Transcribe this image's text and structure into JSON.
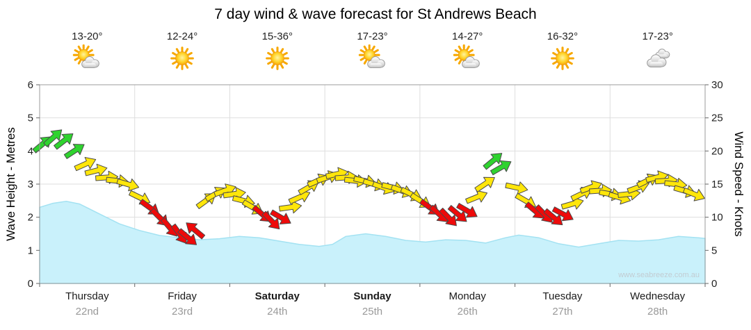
{
  "title": "7 day wind & wave forecast for St Andrews Beach",
  "watermark": "www.seabreeze.com.au",
  "days": [
    {
      "name": "Thursday",
      "date": "22nd",
      "temp": "13-20°",
      "icon": "sun-cloud",
      "bold": false
    },
    {
      "name": "Friday",
      "date": "23rd",
      "temp": "12-24°",
      "icon": "sun",
      "bold": false
    },
    {
      "name": "Saturday",
      "date": "24th",
      "temp": "15-36°",
      "icon": "sun",
      "bold": true
    },
    {
      "name": "Sunday",
      "date": "25th",
      "temp": "17-23°",
      "icon": "sun-cloud",
      "bold": true
    },
    {
      "name": "Monday",
      "date": "26th",
      "temp": "14-27°",
      "icon": "sun-cloud",
      "bold": false
    },
    {
      "name": "Tuesday",
      "date": "27th",
      "temp": "16-32°",
      "icon": "sun",
      "bold": false
    },
    {
      "name": "Wednesday",
      "date": "28th",
      "temp": "17-23°",
      "icon": "cloud",
      "bold": false
    }
  ],
  "chart_data": {
    "type": "area+wind_arrows",
    "title": "7 day wind & wave forecast for St Andrews Beach",
    "x_axis": {
      "categories": [
        "Thursday 22nd",
        "Friday 23rd",
        "Saturday 24th",
        "Sunday 25th",
        "Monday 26th",
        "Tuesday 27th",
        "Wednesday 28th"
      ]
    },
    "left_axis": {
      "label": "Wave Height - Metres",
      "min": 0,
      "max": 6,
      "step": 1
    },
    "right_axis": {
      "label": "Wind Speed - Knots",
      "min": 0,
      "max": 30,
      "step": 5
    },
    "grid": true,
    "legend_position": "none",
    "colors": {
      "wave_fill": "#C9F1FB",
      "wave_edge": "#A3E2F2",
      "green": "#2FD32F",
      "yellow": "#FFE60A",
      "red": "#EE0A0A",
      "grid": "#DEDEDE",
      "border": "#9B9B9B"
    },
    "wave_series": {
      "name": "Wave Height (metres)",
      "columns": [
        "x_fraction",
        "metres"
      ],
      "points": [
        [
          0,
          2.3
        ],
        [
          0.02,
          2.42
        ],
        [
          0.04,
          2.48
        ],
        [
          0.06,
          2.4
        ],
        [
          0.09,
          2.1
        ],
        [
          0.12,
          1.8
        ],
        [
          0.15,
          1.6
        ],
        [
          0.18,
          1.45
        ],
        [
          0.21,
          1.38
        ],
        [
          0.24,
          1.32
        ],
        [
          0.27,
          1.35
        ],
        [
          0.3,
          1.42
        ],
        [
          0.33,
          1.38
        ],
        [
          0.36,
          1.28
        ],
        [
          0.39,
          1.18
        ],
        [
          0.42,
          1.12
        ],
        [
          0.44,
          1.18
        ],
        [
          0.46,
          1.42
        ],
        [
          0.49,
          1.5
        ],
        [
          0.52,
          1.42
        ],
        [
          0.55,
          1.3
        ],
        [
          0.58,
          1.25
        ],
        [
          0.61,
          1.32
        ],
        [
          0.64,
          1.3
        ],
        [
          0.67,
          1.22
        ],
        [
          0.7,
          1.38
        ],
        [
          0.72,
          1.46
        ],
        [
          0.75,
          1.38
        ],
        [
          0.78,
          1.2
        ],
        [
          0.81,
          1.1
        ],
        [
          0.84,
          1.2
        ],
        [
          0.87,
          1.3
        ],
        [
          0.9,
          1.28
        ],
        [
          0.93,
          1.32
        ],
        [
          0.96,
          1.42
        ],
        [
          0.99,
          1.38
        ],
        [
          1,
          1.36
        ]
      ]
    },
    "wind_series": {
      "name": "Wind speed & direction (knots)",
      "columns": [
        "x_fraction",
        "knots",
        "screen_dir_deg(0=right,-90=up)",
        "color"
      ],
      "arrows": [
        [
          0.004,
          21,
          -40,
          "green"
        ],
        [
          0.02,
          22,
          -42,
          "green"
        ],
        [
          0.036,
          21.5,
          -38,
          "green"
        ],
        [
          0.052,
          20,
          -33,
          "green"
        ],
        [
          0.068,
          18,
          -24,
          "yellow"
        ],
        [
          0.084,
          17,
          -14,
          "yellow"
        ],
        [
          0.1,
          16,
          -4,
          "yellow"
        ],
        [
          0.116,
          15.5,
          6,
          "yellow"
        ],
        [
          0.132,
          15,
          16,
          "yellow"
        ],
        [
          0.15,
          13,
          26,
          "yellow"
        ],
        [
          0.165,
          11.5,
          36,
          "red"
        ],
        [
          0.18,
          10,
          45,
          "red"
        ],
        [
          0.195,
          8.5,
          50,
          "red"
        ],
        [
          0.21,
          7.5,
          54,
          "red"
        ],
        [
          0.222,
          7,
          40,
          "red"
        ],
        [
          0.234,
          8,
          -140,
          "red"
        ],
        [
          0.25,
          12.5,
          -36,
          "yellow"
        ],
        [
          0.264,
          13.5,
          -30,
          "yellow"
        ],
        [
          0.278,
          14,
          -20,
          "yellow"
        ],
        [
          0.292,
          13.5,
          -8,
          "yellow"
        ],
        [
          0.306,
          12.5,
          14,
          "yellow"
        ],
        [
          0.32,
          11.5,
          30,
          "yellow"
        ],
        [
          0.334,
          10.5,
          40,
          "red"
        ],
        [
          0.348,
          9.5,
          46,
          "red"
        ],
        [
          0.362,
          10,
          30,
          "red"
        ],
        [
          0.376,
          11.5,
          -8,
          "yellow"
        ],
        [
          0.39,
          13,
          -24,
          "yellow"
        ],
        [
          0.404,
          14.5,
          -30,
          "yellow"
        ],
        [
          0.418,
          15.5,
          -24,
          "yellow"
        ],
        [
          0.432,
          16,
          -18,
          "yellow"
        ],
        [
          0.446,
          16.5,
          -12,
          "yellow"
        ],
        [
          0.46,
          16,
          -4,
          "yellow"
        ],
        [
          0.474,
          15.5,
          6,
          "yellow"
        ],
        [
          0.488,
          15.5,
          12,
          "yellow"
        ],
        [
          0.502,
          15,
          16,
          "yellow"
        ],
        [
          0.516,
          14.5,
          20,
          "yellow"
        ],
        [
          0.53,
          14.5,
          14,
          "yellow"
        ],
        [
          0.544,
          14,
          20,
          "yellow"
        ],
        [
          0.558,
          13.5,
          26,
          "yellow"
        ],
        [
          0.572,
          12.5,
          32,
          "yellow"
        ],
        [
          0.586,
          11.5,
          36,
          "red"
        ],
        [
          0.6,
          10.5,
          42,
          "red"
        ],
        [
          0.614,
          10,
          46,
          "red"
        ],
        [
          0.628,
          10.5,
          40,
          "red"
        ],
        [
          0.642,
          11,
          30,
          "red"
        ],
        [
          0.656,
          13,
          -22,
          "yellow"
        ],
        [
          0.669,
          15,
          -34,
          "yellow"
        ],
        [
          0.681,
          18.5,
          -40,
          "green"
        ],
        [
          0.693,
          17.5,
          -30,
          "green"
        ],
        [
          0.716,
          14.5,
          12,
          "yellow"
        ],
        [
          0.73,
          12.5,
          30,
          "yellow"
        ],
        [
          0.744,
          11,
          40,
          "red"
        ],
        [
          0.758,
          10.5,
          46,
          "red"
        ],
        [
          0.772,
          10,
          40,
          "red"
        ],
        [
          0.786,
          10.5,
          28,
          "red"
        ],
        [
          0.8,
          12,
          -16,
          "yellow"
        ],
        [
          0.814,
          13.5,
          -26,
          "yellow"
        ],
        [
          0.828,
          14.5,
          -20,
          "yellow"
        ],
        [
          0.842,
          14,
          -4,
          "yellow"
        ],
        [
          0.857,
          13.5,
          10,
          "yellow"
        ],
        [
          0.871,
          13,
          16,
          "yellow"
        ],
        [
          0.885,
          13.5,
          -6,
          "yellow"
        ],
        [
          0.899,
          14.5,
          -20,
          "yellow"
        ],
        [
          0.913,
          15.5,
          -26,
          "yellow"
        ],
        [
          0.927,
          16,
          -14,
          "yellow"
        ],
        [
          0.941,
          15.5,
          -4,
          "yellow"
        ],
        [
          0.955,
          15,
          6,
          "yellow"
        ],
        [
          0.969,
          14,
          16,
          "yellow"
        ],
        [
          0.983,
          13.5,
          22,
          "yellow"
        ]
      ]
    }
  }
}
